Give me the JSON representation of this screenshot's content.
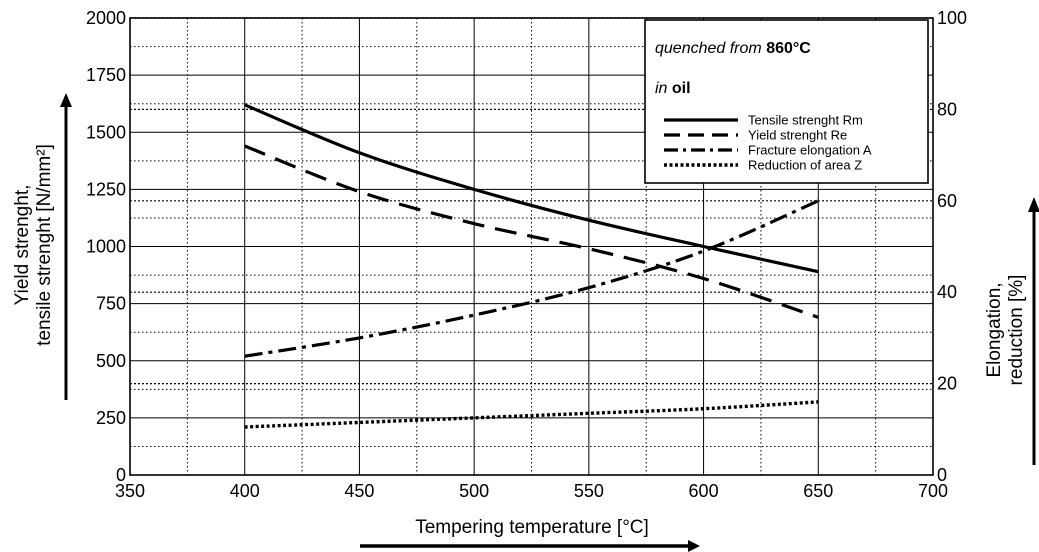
{
  "chart_data": {
    "type": "line",
    "x": [
      400,
      450,
      500,
      550,
      600,
      650
    ],
    "xlim": [
      350,
      700
    ],
    "xticks": [
      "350",
      "400",
      "450",
      "500",
      "550",
      "600",
      "650",
      "700"
    ],
    "xlabel": "Tempering temperature [°C]",
    "ylim_left": [
      0,
      2000
    ],
    "yticks_left": [
      "0",
      "250",
      "500",
      "750",
      "1000",
      "1250",
      "1500",
      "1750",
      "2000"
    ],
    "ylabel_left_line1": "Yield strenght,",
    "ylabel_left_line2": "tensile strenght [N/mm²]",
    "ylim_right": [
      0,
      100
    ],
    "yticks_right": [
      "0",
      "20",
      "40",
      "60",
      "80",
      "100"
    ],
    "ylabel_right_line1": "Elongation,",
    "ylabel_right_line2": "reduction [%]",
    "grid": true,
    "legend_position": "top-right",
    "series": [
      {
        "name": "Tensile strenght Rm",
        "axis": "left",
        "style": "solid",
        "x": [
          400,
          450,
          500,
          550,
          600,
          650
        ],
        "values": [
          1620,
          1410,
          1250,
          1115,
          1000,
          890
        ]
      },
      {
        "name": "Yield strenght Re",
        "axis": "left",
        "style": "dashed",
        "x": [
          400,
          450,
          500,
          550,
          600,
          650
        ],
        "values": [
          1440,
          1240,
          1100,
          990,
          860,
          690
        ]
      },
      {
        "name": "Fracture elongation A",
        "axis": "right",
        "style": "dashdot",
        "x": [
          400,
          450,
          500,
          550,
          600,
          650
        ],
        "values": [
          26,
          30,
          35,
          41,
          49,
          60
        ]
      },
      {
        "name": "Reduction of area Z",
        "axis": "right",
        "style": "dotted",
        "x": [
          400,
          450,
          500,
          550,
          600,
          650
        ],
        "values": [
          10.5,
          11.5,
          12.5,
          13.5,
          14.5,
          16
        ]
      }
    ],
    "annotation": {
      "line1_prefix": "quenched from ",
      "line1_bold": "860°C",
      "line2_prefix": "in ",
      "line2_bold": "oil"
    }
  }
}
